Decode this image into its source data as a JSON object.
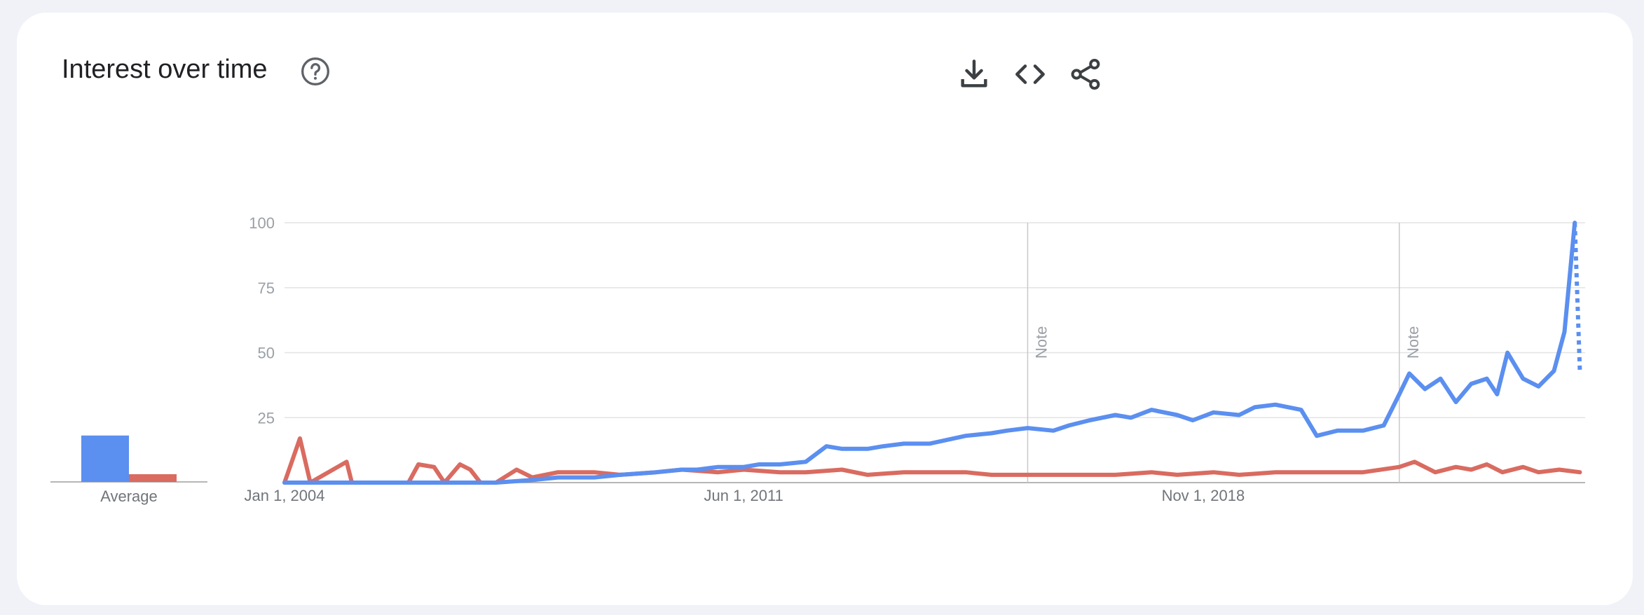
{
  "header": {
    "title": "Interest over time",
    "help_icon": "help-circle-icon",
    "tools": [
      {
        "icon": "download-icon"
      },
      {
        "icon": "embed-code-icon"
      },
      {
        "icon": "share-icon"
      }
    ]
  },
  "chart_data": {
    "type": "line",
    "ylim": [
      0,
      100
    ],
    "yticks": [
      25,
      50,
      75,
      100
    ],
    "x_tick_labels": [
      "Jan 1, 2004",
      "Jun 1, 2011",
      "Nov 1, 2018"
    ],
    "x_tick_dates": [
      "2004-01-01",
      "2011-06-01",
      "2018-11-01"
    ],
    "x_range": [
      "2004-01-01",
      "2025-01-01"
    ],
    "grid": true,
    "notes": [
      {
        "date": "2016-01-01",
        "text": "Note"
      },
      {
        "date": "2022-01-01",
        "text": "Note"
      }
    ],
    "average_label": "Average",
    "averages": [
      18,
      3
    ],
    "series": [
      {
        "color": "#5b8ff0",
        "partial_last_point": true,
        "points": [
          [
            "2004-01-01",
            0
          ],
          [
            "2005-01-01",
            0
          ],
          [
            "2006-01-01",
            0
          ],
          [
            "2007-01-01",
            0
          ],
          [
            "2007-06-01",
            0
          ],
          [
            "2008-01-01",
            1
          ],
          [
            "2008-06-01",
            2
          ],
          [
            "2009-01-01",
            2
          ],
          [
            "2009-06-01",
            3
          ],
          [
            "2010-01-01",
            4
          ],
          [
            "2010-06-01",
            5
          ],
          [
            "2010-09-01",
            5
          ],
          [
            "2011-01-01",
            6
          ],
          [
            "2011-06-01",
            6
          ],
          [
            "2011-09-01",
            7
          ],
          [
            "2012-01-01",
            7
          ],
          [
            "2012-06-01",
            8
          ],
          [
            "2012-10-01",
            14
          ],
          [
            "2013-01-01",
            13
          ],
          [
            "2013-06-01",
            13
          ],
          [
            "2013-09-01",
            14
          ],
          [
            "2014-01-01",
            15
          ],
          [
            "2014-06-01",
            15
          ],
          [
            "2015-01-01",
            18
          ],
          [
            "2015-06-01",
            19
          ],
          [
            "2015-09-01",
            20
          ],
          [
            "2016-01-01",
            21
          ],
          [
            "2016-06-01",
            20
          ],
          [
            "2016-09-01",
            22
          ],
          [
            "2017-01-01",
            24
          ],
          [
            "2017-06-01",
            26
          ],
          [
            "2017-09-01",
            25
          ],
          [
            "2018-01-01",
            28
          ],
          [
            "2018-06-01",
            26
          ],
          [
            "2018-09-01",
            24
          ],
          [
            "2019-01-01",
            27
          ],
          [
            "2019-06-01",
            26
          ],
          [
            "2019-09-01",
            29
          ],
          [
            "2020-01-01",
            30
          ],
          [
            "2020-06-01",
            28
          ],
          [
            "2020-09-01",
            18
          ],
          [
            "2021-01-01",
            20
          ],
          [
            "2021-06-01",
            20
          ],
          [
            "2021-10-01",
            22
          ],
          [
            "2022-01-01",
            34
          ],
          [
            "2022-03-01",
            42
          ],
          [
            "2022-06-01",
            36
          ],
          [
            "2022-09-01",
            40
          ],
          [
            "2022-12-01",
            31
          ],
          [
            "2023-03-01",
            38
          ],
          [
            "2023-06-01",
            40
          ],
          [
            "2023-08-01",
            34
          ],
          [
            "2023-10-01",
            50
          ],
          [
            "2024-01-01",
            40
          ],
          [
            "2024-04-01",
            37
          ],
          [
            "2024-07-01",
            43
          ],
          [
            "2024-09-01",
            58
          ],
          [
            "2024-11-01",
            100
          ],
          [
            "2024-12-01",
            43
          ]
        ]
      },
      {
        "color": "#d96b60",
        "points": [
          [
            "2004-01-01",
            0
          ],
          [
            "2004-04-01",
            17
          ],
          [
            "2004-06-01",
            0
          ],
          [
            "2005-01-01",
            8
          ],
          [
            "2005-02-01",
            0
          ],
          [
            "2006-01-01",
            0
          ],
          [
            "2006-03-01",
            7
          ],
          [
            "2006-06-01",
            6
          ],
          [
            "2006-08-01",
            0
          ],
          [
            "2006-11-01",
            7
          ],
          [
            "2007-01-01",
            5
          ],
          [
            "2007-03-01",
            0
          ],
          [
            "2007-06-01",
            0
          ],
          [
            "2007-10-01",
            5
          ],
          [
            "2008-01-01",
            2
          ],
          [
            "2008-06-01",
            4
          ],
          [
            "2009-01-01",
            4
          ],
          [
            "2009-06-01",
            3
          ],
          [
            "2010-01-01",
            4
          ],
          [
            "2010-06-01",
            5
          ],
          [
            "2011-01-01",
            4
          ],
          [
            "2011-06-01",
            5
          ],
          [
            "2012-01-01",
            4
          ],
          [
            "2012-06-01",
            4
          ],
          [
            "2013-01-01",
            5
          ],
          [
            "2013-06-01",
            3
          ],
          [
            "2014-01-01",
            4
          ],
          [
            "2014-06-01",
            4
          ],
          [
            "2015-01-01",
            4
          ],
          [
            "2015-06-01",
            3
          ],
          [
            "2016-01-01",
            3
          ],
          [
            "2016-06-01",
            3
          ],
          [
            "2017-01-01",
            3
          ],
          [
            "2017-06-01",
            3
          ],
          [
            "2018-01-01",
            4
          ],
          [
            "2018-06-01",
            3
          ],
          [
            "2019-01-01",
            4
          ],
          [
            "2019-06-01",
            3
          ],
          [
            "2020-01-01",
            4
          ],
          [
            "2020-06-01",
            4
          ],
          [
            "2021-01-01",
            4
          ],
          [
            "2021-06-01",
            4
          ],
          [
            "2022-01-01",
            6
          ],
          [
            "2022-04-01",
            8
          ],
          [
            "2022-08-01",
            4
          ],
          [
            "2022-12-01",
            6
          ],
          [
            "2023-03-01",
            5
          ],
          [
            "2023-06-01",
            7
          ],
          [
            "2023-09-01",
            4
          ],
          [
            "2024-01-01",
            6
          ],
          [
            "2024-04-01",
            4
          ],
          [
            "2024-08-01",
            5
          ],
          [
            "2024-12-01",
            4
          ]
        ]
      }
    ]
  }
}
